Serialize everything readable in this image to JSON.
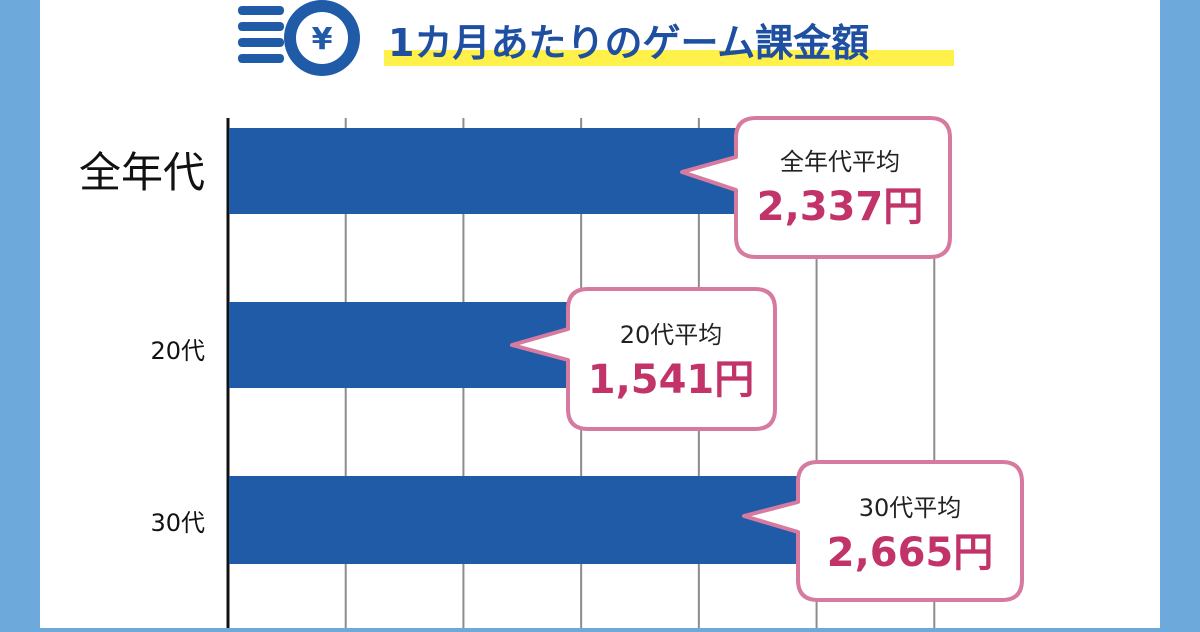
{
  "chart_data": {
    "type": "bar",
    "orientation": "horizontal",
    "title": "1カ月あたりのゲーム課金額",
    "categories": [
      "全年代",
      "20代",
      "30代"
    ],
    "values": [
      2337,
      1541,
      2665
    ],
    "callouts": [
      {
        "label": "全年代平均",
        "value_text": "2,337円"
      },
      {
        "label": "20代平均",
        "value_text": "1,541円"
      },
      {
        "label": "30代平均",
        "value_text": "2,665円"
      }
    ],
    "xlim": [
      0,
      3500
    ],
    "grid": true,
    "colors": {
      "bar": "#1f5ba6",
      "callout_border": "#d77aa0",
      "callout_value": "#c2336a",
      "title_text": "#1f4fa0",
      "title_highlight": "#fff04a",
      "frame": "#6ea9dc"
    },
    "icon": "yen-coin-stack-icon"
  }
}
